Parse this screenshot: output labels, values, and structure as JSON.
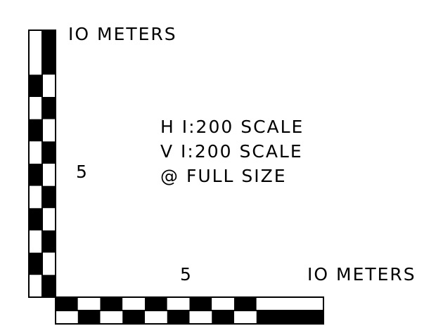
{
  "colors": {
    "ink": "#000000",
    "paper": "#ffffff"
  },
  "labels": {
    "vertical_top": "IO METERS",
    "vertical_mid": "5",
    "horizontal_mid": "5",
    "horizontal_end": "IO METERS",
    "scale_h": "H I:200 SCALE",
    "scale_v": "V I:200 SCALE",
    "full_size": "@ FULL SIZE"
  },
  "vertical_bar": {
    "divisions": [
      "solid",
      "checker",
      "checker",
      "checker",
      "checker",
      "checker"
    ]
  },
  "horizontal_bar": {
    "divisions": [
      "checker",
      "checker",
      "checker",
      "checker",
      "checker",
      "solid"
    ]
  }
}
